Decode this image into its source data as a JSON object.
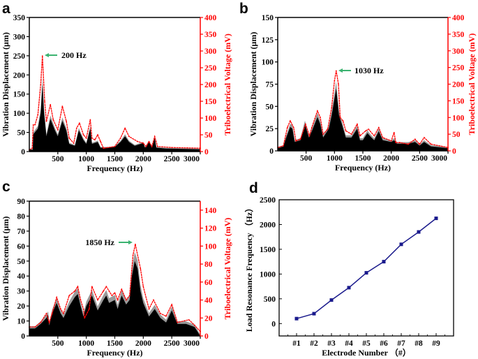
{
  "chart_data": [
    {
      "panel": "a",
      "type": "area",
      "xlabel": "Frequency (Hz)",
      "ylabel": "Vibration Displacement (μm)",
      "y2label": "Triboelectrical Voltage (mV)",
      "xlim": [
        0,
        3000
      ],
      "ylim": [
        0,
        350
      ],
      "y2lim": [
        0,
        400
      ],
      "xticks": [
        500,
        1000,
        1500,
        2000,
        2500,
        3000
      ],
      "yticks": [
        0,
        50,
        100,
        150,
        200,
        250,
        300,
        350
      ],
      "y2ticks": [
        0,
        50,
        100,
        150,
        200,
        250,
        300,
        350,
        400
      ],
      "annotation": {
        "text": "200 Hz",
        "x": 200,
        "arrow": "left"
      },
      "colors": {
        "displacement": "#000000",
        "voltage": "#ff0000",
        "annotation_arrow": "#3cb371"
      },
      "series": [
        {
          "axis": "left",
          "points": [
            [
              0,
              5
            ],
            [
              60,
              5
            ],
            [
              70,
              45
            ],
            [
              150,
              60
            ],
            [
              200,
              100
            ],
            [
              230,
              175
            ],
            [
              260,
              100
            ],
            [
              300,
              40
            ],
            [
              370,
              85
            ],
            [
              450,
              55
            ],
            [
              500,
              40
            ],
            [
              580,
              80
            ],
            [
              650,
              55
            ],
            [
              700,
              20
            ],
            [
              800,
              15
            ],
            [
              870,
              55
            ],
            [
              950,
              30
            ],
            [
              1000,
              20
            ],
            [
              1070,
              60
            ],
            [
              1100,
              20
            ],
            [
              1200,
              25
            ],
            [
              1250,
              10
            ],
            [
              1400,
              10
            ],
            [
              1500,
              12
            ],
            [
              1600,
              25
            ],
            [
              1680,
              40
            ],
            [
              1750,
              25
            ],
            [
              1850,
              15
            ],
            [
              2000,
              22
            ],
            [
              2030,
              10
            ],
            [
              2100,
              25
            ],
            [
              2150,
              10
            ],
            [
              2200,
              35
            ],
            [
              2230,
              10
            ],
            [
              2400,
              8
            ],
            [
              3000,
              6
            ]
          ]
        },
        {
          "axis": "right",
          "points": [
            [
              0,
              5
            ],
            [
              50,
              10
            ],
            [
              70,
              80
            ],
            [
              100,
              80
            ],
            [
              150,
              110
            ],
            [
              200,
              200
            ],
            [
              230,
              285
            ],
            [
              270,
              150
            ],
            [
              300,
              90
            ],
            [
              370,
              140
            ],
            [
              420,
              95
            ],
            [
              500,
              65
            ],
            [
              580,
              135
            ],
            [
              650,
              90
            ],
            [
              700,
              40
            ],
            [
              780,
              25
            ],
            [
              830,
              70
            ],
            [
              880,
              85
            ],
            [
              950,
              50
            ],
            [
              1000,
              40
            ],
            [
              1070,
              95
            ],
            [
              1100,
              40
            ],
            [
              1150,
              35
            ],
            [
              1200,
              50
            ],
            [
              1250,
              30
            ],
            [
              1300,
              10
            ],
            [
              1500,
              15
            ],
            [
              1600,
              40
            ],
            [
              1680,
              70
            ],
            [
              1750,
              45
            ],
            [
              1900,
              30
            ],
            [
              2000,
              25
            ],
            [
              2050,
              15
            ],
            [
              2100,
              30
            ],
            [
              2150,
              15
            ],
            [
              2200,
              45
            ],
            [
              2250,
              15
            ],
            [
              2500,
              12
            ],
            [
              3000,
              10
            ]
          ]
        }
      ]
    },
    {
      "panel": "b",
      "type": "area",
      "xlabel": "Frequency (Hz)",
      "ylabel": "Vibration Displacement (μm)",
      "y2label": "Triboelectrical Voltage (mV)",
      "xlim": [
        0,
        3000
      ],
      "ylim": [
        0,
        150
      ],
      "y2lim": [
        0,
        400
      ],
      "xticks": [
        500,
        1000,
        1500,
        2000,
        2500,
        3000
      ],
      "yticks": [
        0,
        25,
        50,
        75,
        100,
        125,
        150
      ],
      "y2ticks": [
        0,
        50,
        100,
        150,
        200,
        250,
        300,
        350,
        400
      ],
      "annotation": {
        "text": "1030 Hz",
        "x": 1030,
        "arrow": "left"
      },
      "colors": {
        "displacement": "#000000",
        "voltage": "#ff0000",
        "annotation_arrow": "#3cb371"
      },
      "series": [
        {
          "axis": "left",
          "points": [
            [
              0,
              3
            ],
            [
              100,
              5
            ],
            [
              150,
              15
            ],
            [
              220,
              27
            ],
            [
              260,
              25
            ],
            [
              300,
              10
            ],
            [
              400,
              12
            ],
            [
              480,
              30
            ],
            [
              550,
              15
            ],
            [
              600,
              22
            ],
            [
              700,
              38
            ],
            [
              750,
              30
            ],
            [
              800,
              15
            ],
            [
              900,
              25
            ],
            [
              950,
              40
            ],
            [
              1030,
              70
            ],
            [
              1080,
              40
            ],
            [
              1130,
              30
            ],
            [
              1200,
              15
            ],
            [
              1300,
              15
            ],
            [
              1400,
              25
            ],
            [
              1450,
              12
            ],
            [
              1500,
              12
            ],
            [
              1580,
              20
            ],
            [
              1650,
              15
            ],
            [
              1700,
              12
            ],
            [
              1780,
              22
            ],
            [
              1850,
              12
            ],
            [
              2000,
              10
            ],
            [
              2050,
              12
            ],
            [
              2100,
              8
            ],
            [
              2300,
              8
            ],
            [
              2420,
              10
            ],
            [
              2500,
              6
            ],
            [
              2580,
              10
            ],
            [
              2700,
              5
            ],
            [
              3000,
              3
            ]
          ]
        },
        {
          "axis": "right",
          "points": [
            [
              0,
              10
            ],
            [
              100,
              15
            ],
            [
              170,
              70
            ],
            [
              220,
              90
            ],
            [
              280,
              70
            ],
            [
              320,
              30
            ],
            [
              400,
              35
            ],
            [
              490,
              80
            ],
            [
              560,
              45
            ],
            [
              600,
              70
            ],
            [
              700,
              120
            ],
            [
              750,
              100
            ],
            [
              800,
              50
            ],
            [
              880,
              65
            ],
            [
              950,
              130
            ],
            [
              1000,
              210
            ],
            [
              1030,
              240
            ],
            [
              1070,
              200
            ],
            [
              1100,
              100
            ],
            [
              1150,
              90
            ],
            [
              1200,
              60
            ],
            [
              1300,
              50
            ],
            [
              1400,
              80
            ],
            [
              1450,
              45
            ],
            [
              1550,
              60
            ],
            [
              1600,
              65
            ],
            [
              1700,
              45
            ],
            [
              1780,
              70
            ],
            [
              1850,
              40
            ],
            [
              2000,
              30
            ],
            [
              2050,
              55
            ],
            [
              2080,
              25
            ],
            [
              2150,
              25
            ],
            [
              2300,
              20
            ],
            [
              2420,
              35
            ],
            [
              2500,
              20
            ],
            [
              2580,
              40
            ],
            [
              2700,
              20
            ],
            [
              3000,
              10
            ]
          ]
        }
      ]
    },
    {
      "panel": "c",
      "type": "area",
      "xlabel": "Frequency (Hz)",
      "ylabel": "Vibration Displacement (μm)",
      "y2label": "Triboelectrical Voltage (mV)",
      "xlim": [
        0,
        3000
      ],
      "ylim": [
        0,
        90
      ],
      "y2lim": [
        0,
        150
      ],
      "xticks": [
        500,
        1000,
        1500,
        2000,
        2500,
        3000
      ],
      "yticks": [
        0,
        10,
        20,
        30,
        40,
        50,
        60,
        70,
        80,
        90
      ],
      "y2ticks": [
        0,
        20,
        40,
        60,
        80,
        100,
        120,
        140
      ],
      "annotation": {
        "text": "1850 Hz",
        "x": 1850,
        "arrow": "right"
      },
      "colors": {
        "displacement": "#000000",
        "voltage": "#ff0000",
        "annotation_arrow": "#3cb371"
      },
      "series": [
        {
          "axis": "left",
          "points": [
            [
              0,
              5
            ],
            [
              100,
              5
            ],
            [
              200,
              8
            ],
            [
              300,
              12
            ],
            [
              330,
              14
            ],
            [
              350,
              7
            ],
            [
              400,
              15
            ],
            [
              480,
              22
            ],
            [
              550,
              15
            ],
            [
              600,
              12
            ],
            [
              700,
              20
            ],
            [
              800,
              26
            ],
            [
              850,
              28
            ],
            [
              900,
              20
            ],
            [
              950,
              13
            ],
            [
              1000,
              20
            ],
            [
              1100,
              27
            ],
            [
              1200,
              17
            ],
            [
              1300,
              24
            ],
            [
              1350,
              27
            ],
            [
              1400,
              22
            ],
            [
              1500,
              24
            ],
            [
              1550,
              18
            ],
            [
              1620,
              27
            ],
            [
              1700,
              21
            ],
            [
              1760,
              24
            ],
            [
              1800,
              40
            ],
            [
              1850,
              50
            ],
            [
              1900,
              45
            ],
            [
              1950,
              30
            ],
            [
              2000,
              22
            ],
            [
              2100,
              13
            ],
            [
              2200,
              18
            ],
            [
              2300,
              12
            ],
            [
              2400,
              9
            ],
            [
              2500,
              17
            ],
            [
              2600,
              8
            ],
            [
              2750,
              8
            ],
            [
              2900,
              6
            ],
            [
              3000,
              0
            ]
          ]
        },
        {
          "axis": "right",
          "points": [
            [
              0,
              10
            ],
            [
              100,
              10
            ],
            [
              200,
              15
            ],
            [
              300,
              25
            ],
            [
              350,
              15
            ],
            [
              400,
              25
            ],
            [
              480,
              43
            ],
            [
              550,
              30
            ],
            [
              600,
              25
            ],
            [
              700,
              45
            ],
            [
              800,
              50
            ],
            [
              850,
              55
            ],
            [
              900,
              40
            ],
            [
              950,
              30
            ],
            [
              970,
              20
            ],
            [
              1050,
              30
            ],
            [
              1100,
              55
            ],
            [
              1200,
              40
            ],
            [
              1300,
              50
            ],
            [
              1350,
              55
            ],
            [
              1400,
              50
            ],
            [
              1450,
              45
            ],
            [
              1500,
              48
            ],
            [
              1550,
              40
            ],
            [
              1620,
              52
            ],
            [
              1700,
              40
            ],
            [
              1760,
              45
            ],
            [
              1820,
              90
            ],
            [
              1860,
              102
            ],
            [
              1950,
              75
            ],
            [
              2000,
              55
            ],
            [
              2100,
              30
            ],
            [
              2180,
              40
            ],
            [
              2300,
              25
            ],
            [
              2400,
              22
            ],
            [
              2500,
              35
            ],
            [
              2600,
              15
            ],
            [
              2800,
              18
            ],
            [
              2900,
              12
            ],
            [
              3000,
              5
            ]
          ]
        }
      ]
    },
    {
      "panel": "d",
      "type": "line",
      "xlabel": "Electrode Number （#）",
      "ylabel": "Load Resonance Frequency （Hz）",
      "categories": [
        "#1",
        "#2",
        "#3",
        "#4",
        "#5",
        "#6",
        "#7",
        "#8",
        "#9"
      ],
      "values": [
        100,
        200,
        475,
        725,
        1025,
        1250,
        1600,
        1850,
        2125
      ],
      "ylim": [
        -250,
        2500
      ],
      "yticks": [
        0,
        500,
        1000,
        1500,
        2000,
        2500
      ],
      "colors": {
        "line": "#1a1a8c"
      }
    }
  ]
}
